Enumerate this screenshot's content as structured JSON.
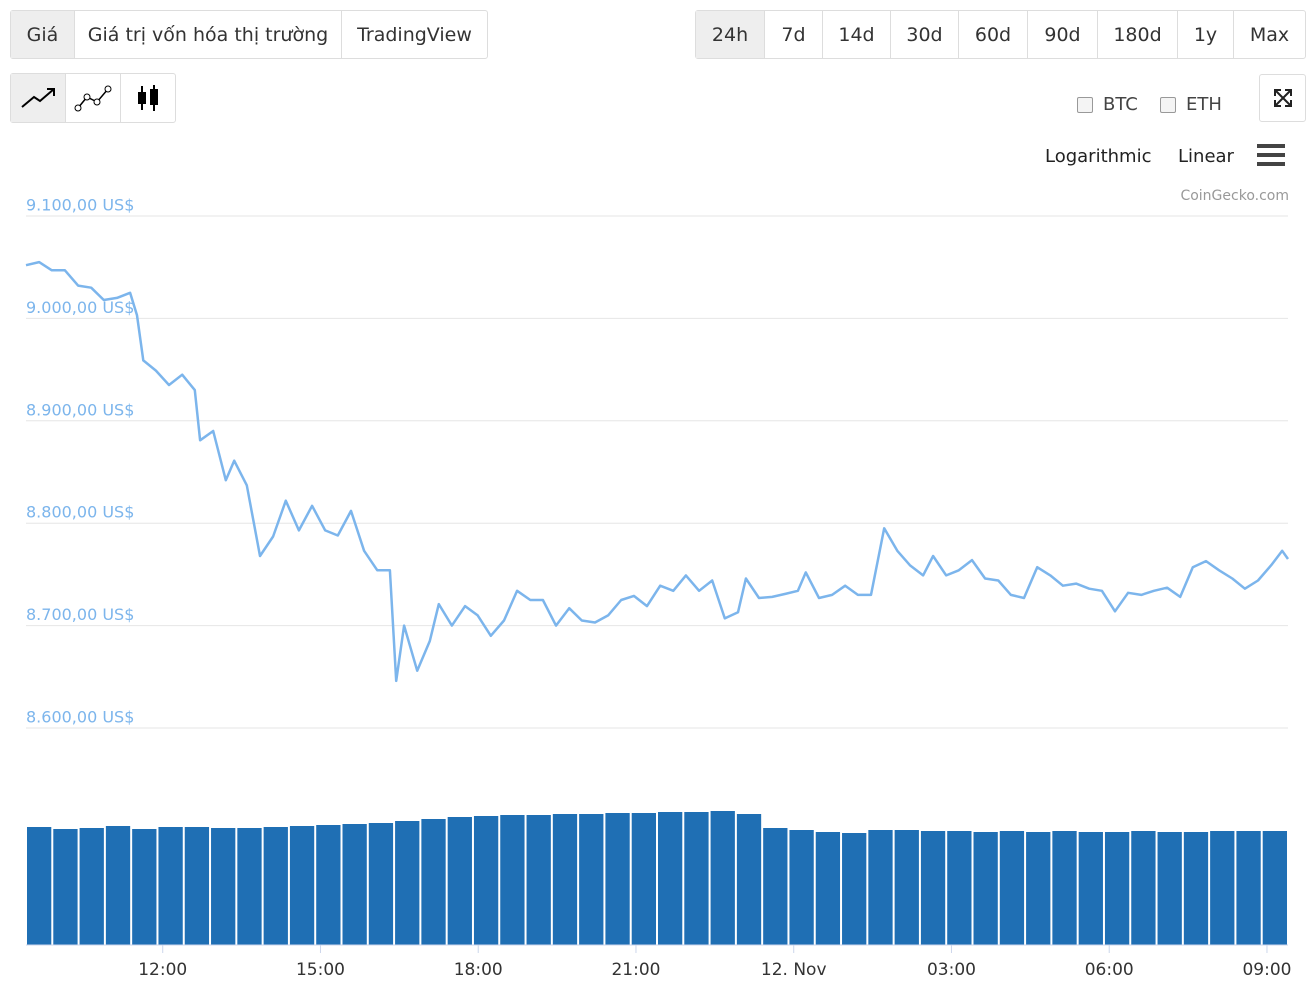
{
  "tabs": [
    "Giá",
    "Giá trị vốn hóa thị trường",
    "TradingView"
  ],
  "ranges": [
    "24h",
    "7d",
    "14d",
    "30d",
    "60d",
    "90d",
    "180d",
    "1y",
    "Max"
  ],
  "compare": [
    "BTC",
    "ETH"
  ],
  "scale_options": [
    "Logarithmic",
    "Linear"
  ],
  "credit": "CoinGecko.com",
  "chart_data": {
    "type": "line",
    "color": "#7cb5ec",
    "grid": true,
    "xlim": [
      9.4,
      33.4
    ],
    "xticks": [
      {
        "value": 12,
        "label": "12:00"
      },
      {
        "value": 15,
        "label": "15:00"
      },
      {
        "value": 18,
        "label": "18:00"
      },
      {
        "value": 21,
        "label": "21:00"
      },
      {
        "value": 24,
        "label": "12. Nov"
      },
      {
        "value": 27,
        "label": "03:00"
      },
      {
        "value": 30,
        "label": "06:00"
      },
      {
        "value": 33,
        "label": "09:00"
      }
    ],
    "ylim": [
      8600,
      9100
    ],
    "yticks": [
      {
        "value": 9100,
        "label": "9.100,00 US$"
      },
      {
        "value": 9000,
        "label": "9.000,00 US$"
      },
      {
        "value": 8900,
        "label": "8.900,00 US$"
      },
      {
        "value": 8800,
        "label": "8.800,00 US$"
      },
      {
        "value": 8700,
        "label": "8.700,00 US$"
      },
      {
        "value": 8600,
        "label": "8.600,00 US$"
      }
    ],
    "x": [
      9.4,
      9.65,
      9.89,
      10.14,
      10.39,
      10.64,
      10.88,
      11.13,
      11.38,
      11.51,
      11.63,
      11.87,
      12.12,
      12.37,
      12.61,
      12.71,
      12.96,
      13.2,
      13.36,
      13.6,
      13.85,
      14.1,
      14.34,
      14.59,
      14.84,
      15.09,
      15.33,
      15.58,
      15.83,
      16.08,
      16.32,
      16.44,
      16.59,
      16.84,
      17.08,
      17.25,
      17.5,
      17.75,
      17.99,
      18.24,
      18.49,
      18.74,
      18.99,
      19.23,
      19.48,
      19.73,
      19.97,
      20.22,
      20.47,
      20.72,
      20.96,
      21.21,
      21.46,
      21.71,
      21.95,
      22.2,
      22.45,
      22.69,
      22.94,
      23.09,
      23.34,
      23.59,
      23.84,
      24.08,
      24.23,
      24.48,
      24.73,
      24.98,
      25.22,
      25.47,
      25.72,
      25.97,
      26.21,
      26.46,
      26.65,
      26.9,
      27.14,
      27.39,
      27.64,
      27.89,
      28.13,
      28.38,
      28.63,
      28.88,
      29.12,
      29.37,
      29.62,
      29.86,
      30.11,
      30.36,
      30.61,
      30.85,
      31.1,
      31.35,
      31.59,
      31.84,
      32.09,
      32.34,
      32.58,
      32.83,
      33.08,
      33.29,
      33.4
    ],
    "values": [
      9052,
      9055,
      9047,
      9047,
      9032,
      9030,
      9018,
      9020,
      9025,
      9003,
      8959,
      8949,
      8935,
      8945,
      8930,
      8881,
      8890,
      8842,
      8861,
      8837,
      8768,
      8787,
      8822,
      8793,
      8817,
      8793,
      8788,
      8812,
      8773,
      8754,
      8754,
      8646,
      8700,
      8656,
      8685,
      8721,
      8700,
      8719,
      8710,
      8690,
      8705,
      8734,
      8725,
      8725,
      8700,
      8717,
      8705,
      8703,
      8710,
      8725,
      8729,
      8719,
      8739,
      8734,
      8749,
      8734,
      8744,
      8707,
      8713,
      8746,
      8727,
      8728,
      8731,
      8734,
      8752,
      8727,
      8730,
      8739,
      8730,
      8730,
      8795,
      8773,
      8759,
      8749,
      8768,
      8749,
      8754,
      8764,
      8746,
      8744,
      8730,
      8727,
      8757,
      8749,
      8739,
      8741,
      8736,
      8734,
      8714,
      8732,
      8730,
      8734,
      8737,
      8728,
      8757,
      8763,
      8754,
      8746,
      8736,
      8744,
      8759,
      8773,
      8765
    ],
    "volume": {
      "color": "#1f6fb4",
      "ylim": [
        0,
        140
      ],
      "x": [
        9.65,
        10.15,
        10.65,
        11.15,
        11.65,
        12.15,
        12.65,
        13.15,
        13.65,
        14.15,
        14.65,
        15.15,
        15.65,
        16.15,
        16.65,
        17.15,
        17.65,
        18.15,
        18.65,
        19.15,
        19.65,
        20.15,
        20.65,
        21.15,
        21.65,
        22.15,
        22.65,
        23.15,
        23.65,
        24.15,
        24.65,
        25.15,
        25.65,
        26.15,
        26.65,
        27.15,
        27.65,
        28.15,
        28.65,
        29.15,
        29.65,
        30.15,
        30.65,
        31.15,
        31.65,
        32.15,
        32.65,
        33.15
      ],
      "values": [
        118,
        116,
        117,
        119,
        116,
        118,
        118,
        117,
        117,
        118,
        119,
        120,
        121,
        122,
        124,
        126,
        128,
        129,
        130,
        130,
        131,
        131,
        132,
        132,
        133,
        133,
        134,
        131,
        117,
        115,
        113,
        112,
        115,
        115,
        114,
        114,
        113,
        114,
        113,
        114,
        113,
        113,
        114,
        113,
        113,
        114,
        114,
        114
      ]
    }
  }
}
